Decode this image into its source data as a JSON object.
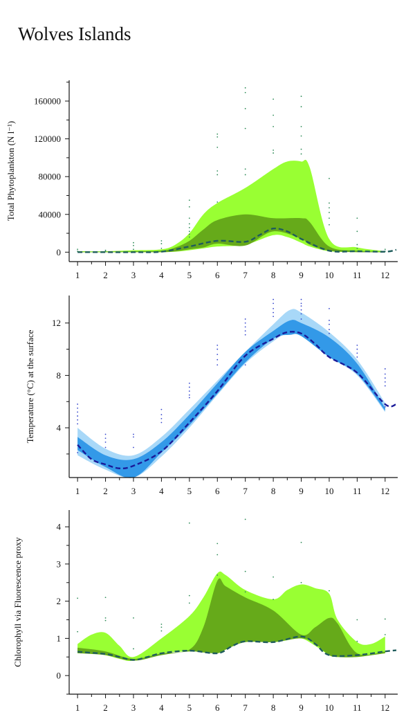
{
  "page": {
    "title": "Wolves Islands"
  },
  "chart_data": [
    {
      "type": "area",
      "ylabel": "Total Phytoplankton (N l⁻¹)",
      "xlim": [
        0.7,
        12.45
      ],
      "ylim": [
        -10000,
        182000
      ],
      "xticks": [
        1,
        2,
        3,
        4,
        5,
        6,
        7,
        8,
        9,
        10,
        11,
        12
      ],
      "yticks": [
        0,
        40000,
        80000,
        120000,
        160000
      ],
      "ytick_labels": [
        "0",
        "40000",
        "80000",
        "120000",
        "160000"
      ],
      "colors": {
        "outer": "#99ff33",
        "inner": "#66aa1a",
        "line": "#1f5c5c",
        "dots": "#2e8b57"
      },
      "bands": [
        {
          "role": "outer",
          "x": [
            1,
            2,
            3,
            4,
            4.5,
            5,
            5.5,
            6,
            7,
            8,
            8.5,
            9,
            9.3,
            10,
            11,
            12
          ],
          "upper": [
            1000,
            1000,
            2000,
            3000,
            8000,
            20000,
            40000,
            52000,
            68000,
            88000,
            96000,
            96000,
            90000,
            14000,
            5000,
            1000
          ],
          "lower": [
            0,
            0,
            0,
            0,
            500,
            2000,
            4000,
            6000,
            8000,
            18000,
            16000,
            10000,
            6000,
            1000,
            0,
            0
          ]
        },
        {
          "role": "inner",
          "x": [
            1,
            2,
            3,
            4,
            4.5,
            5,
            5.5,
            6,
            7,
            8,
            9,
            9.3,
            10,
            11,
            12
          ],
          "upper": [
            500,
            500,
            800,
            1500,
            5000,
            12000,
            24000,
            34000,
            40000,
            36000,
            36000,
            32000,
            6000,
            1500,
            500
          ],
          "lower": [
            0,
            0,
            0,
            0,
            800,
            3000,
            5000,
            9000,
            7000,
            22000,
            14000,
            8000,
            1500,
            0,
            0
          ]
        }
      ],
      "mean_line": {
        "x": [
          1,
          2,
          3,
          4,
          5,
          6,
          7,
          7.5,
          8,
          8.5,
          9,
          10,
          11,
          12,
          12.4
        ],
        "y": [
          0,
          0,
          0,
          500,
          6000,
          12000,
          11000,
          18000,
          25000,
          22000,
          14000,
          1500,
          1000,
          500,
          2500
        ]
      },
      "points": [
        [
          1,
          3000
        ],
        [
          1,
          1000
        ],
        [
          2,
          2000
        ],
        [
          2,
          1000
        ],
        [
          3,
          10000
        ],
        [
          3,
          7000
        ],
        [
          3,
          3000
        ],
        [
          4,
          12000
        ],
        [
          4,
          9000
        ],
        [
          4,
          4000
        ],
        [
          5,
          55000
        ],
        [
          5,
          48000
        ],
        [
          5,
          36000
        ],
        [
          5,
          30000
        ],
        [
          5,
          26000
        ],
        [
          5,
          22000
        ],
        [
          5,
          19000
        ],
        [
          5,
          16000
        ],
        [
          6,
          125000
        ],
        [
          6,
          122000
        ],
        [
          6,
          111000
        ],
        [
          6,
          86000
        ],
        [
          6,
          82000
        ],
        [
          6,
          53000
        ],
        [
          7,
          174000
        ],
        [
          7,
          169000
        ],
        [
          7,
          152000
        ],
        [
          7,
          131000
        ],
        [
          7,
          88000
        ],
        [
          7,
          82000
        ],
        [
          8,
          162000
        ],
        [
          8,
          145000
        ],
        [
          8,
          133000
        ],
        [
          8,
          108000
        ],
        [
          8,
          105000
        ],
        [
          9,
          165000
        ],
        [
          9,
          154000
        ],
        [
          9,
          133000
        ],
        [
          9,
          123000
        ],
        [
          9,
          109000
        ],
        [
          9,
          104000
        ],
        [
          10,
          78000
        ],
        [
          10,
          52000
        ],
        [
          10,
          47000
        ],
        [
          10,
          42000
        ],
        [
          10,
          36000
        ],
        [
          10,
          29000
        ],
        [
          11,
          36000
        ],
        [
          11,
          22000
        ],
        [
          11,
          8000
        ],
        [
          11,
          4000
        ],
        [
          12,
          3000
        ],
        [
          12,
          1000
        ]
      ]
    },
    {
      "type": "area",
      "ylabel": "Temperature (°C) at the surface",
      "xlim": [
        0.7,
        12.45
      ],
      "ylim": [
        0.2,
        14.1
      ],
      "xticks": [
        1,
        2,
        3,
        4,
        5,
        6,
        7,
        8,
        9,
        10,
        11,
        12
      ],
      "yticks": [
        4,
        8,
        12
      ],
      "ytick_labels": [
        "4",
        "8",
        "12"
      ],
      "minor_yticks": [
        2,
        6,
        10
      ],
      "colors": {
        "outer": "#a8d8f8",
        "inner": "#3399e8",
        "line": "#1a1a99",
        "dots": "#3344cc"
      },
      "bands": [
        {
          "role": "outer",
          "x": [
            1,
            2,
            3,
            4,
            5,
            6,
            7,
            8,
            8.6,
            9,
            10,
            11,
            12
          ],
          "upper": [
            4.0,
            2.4,
            1.9,
            3.3,
            5.4,
            7.6,
            9.8,
            11.9,
            13.0,
            12.8,
            11.3,
            9.2,
            5.9
          ],
          "lower": [
            1.9,
            0.8,
            0.2,
            1.8,
            4.0,
            6.5,
            8.9,
            10.6,
            11.3,
            11.0,
            9.4,
            8.0,
            5.2
          ]
        },
        {
          "role": "inner",
          "x": [
            1,
            2,
            3,
            4,
            5,
            6,
            7,
            8,
            8.6,
            9,
            10,
            11,
            12
          ],
          "upper": [
            3.3,
            1.9,
            1.6,
            2.9,
            5.0,
            7.4,
            9.8,
            11.4,
            12.2,
            12.0,
            10.9,
            8.9,
            5.5
          ],
          "lower": [
            2.3,
            1.0,
            0.2,
            2.1,
            4.2,
            6.6,
            9.0,
            10.8,
            11.1,
            11.0,
            9.4,
            8.1,
            5.3
          ]
        }
      ],
      "mean_line": {
        "x": [
          1,
          1.5,
          2,
          2.5,
          3,
          4,
          5,
          6,
          7,
          8,
          8.5,
          9,
          9.5,
          10,
          11,
          12,
          12.4
        ],
        "y": [
          2.7,
          1.6,
          1.2,
          0.9,
          1.1,
          2.2,
          4.4,
          6.8,
          9.5,
          10.8,
          11.3,
          11.2,
          10.4,
          9.4,
          8.2,
          5.8,
          5.8
        ]
      },
      "points": [
        [
          1,
          5.8
        ],
        [
          1,
          5.5
        ],
        [
          1,
          5.2
        ],
        [
          1,
          4.9
        ],
        [
          1,
          4.6
        ],
        [
          1,
          4.3
        ],
        [
          1,
          2.1
        ],
        [
          2,
          3.5
        ],
        [
          2,
          3.2
        ],
        [
          2,
          2.9
        ],
        [
          2,
          2.5
        ],
        [
          3,
          3.5
        ],
        [
          3,
          3.3
        ],
        [
          3,
          2.5
        ],
        [
          4,
          5.4
        ],
        [
          4,
          5.0
        ],
        [
          4,
          4.7
        ],
        [
          4,
          4.4
        ],
        [
          4,
          2.2
        ],
        [
          5,
          7.4
        ],
        [
          5,
          7.1
        ],
        [
          5,
          6.8
        ],
        [
          5,
          6.5
        ],
        [
          5,
          6.3
        ],
        [
          6,
          10.3
        ],
        [
          6,
          10.0
        ],
        [
          6,
          9.6
        ],
        [
          6,
          9.2
        ],
        [
          6,
          8.8
        ],
        [
          7,
          12.3
        ],
        [
          7,
          12.0
        ],
        [
          7,
          11.7
        ],
        [
          7,
          11.4
        ],
        [
          7,
          11.1
        ],
        [
          7,
          8.8
        ],
        [
          8,
          13.8
        ],
        [
          8,
          13.5
        ],
        [
          8,
          13.1
        ],
        [
          8,
          12.8
        ],
        [
          8,
          12.5
        ],
        [
          9,
          13.8
        ],
        [
          9,
          13.5
        ],
        [
          9,
          13.3
        ],
        [
          9,
          13.0
        ],
        [
          9,
          12.7
        ],
        [
          9,
          12.3
        ],
        [
          10,
          13.1
        ],
        [
          10,
          12.2
        ],
        [
          10,
          11.9
        ],
        [
          10,
          11.5
        ],
        [
          10,
          11.2
        ],
        [
          11,
          10.3
        ],
        [
          11,
          10.0
        ],
        [
          11,
          9.7
        ],
        [
          11,
          9.4
        ],
        [
          12,
          8.5
        ],
        [
          12,
          8.1
        ],
        [
          12,
          7.8
        ],
        [
          12,
          7.5
        ],
        [
          12,
          7.2
        ],
        [
          12,
          5.6
        ]
      ]
    },
    {
      "type": "area",
      "ylabel": "Chlorophyll via Fluorescence proxy",
      "xlim": [
        0.7,
        12.45
      ],
      "ylim": [
        -0.5,
        4.45
      ],
      "xticks": [
        1,
        2,
        3,
        4,
        5,
        6,
        7,
        8,
        9,
        10,
        11,
        12
      ],
      "yticks": [
        0,
        1,
        2,
        3,
        4
      ],
      "ytick_labels": [
        "0",
        "1",
        "2",
        "3",
        "4"
      ],
      "colors": {
        "outer": "#99ff33",
        "inner": "#66aa1a",
        "line": "#1f5c5c",
        "dots": "#2e8b57"
      },
      "bands": [
        {
          "role": "outer",
          "x": [
            1,
            1.5,
            2,
            2.5,
            3,
            4,
            5,
            5.5,
            6,
            6.3,
            7,
            8,
            8.5,
            9,
            9.5,
            10,
            10.3,
            11,
            11.5,
            12
          ],
          "upper": [
            0.85,
            1.1,
            1.15,
            0.8,
            0.5,
            1.0,
            1.6,
            2.1,
            2.75,
            2.7,
            2.3,
            2.05,
            2.3,
            2.45,
            2.35,
            2.2,
            1.5,
            0.9,
            0.85,
            1.05
          ],
          "lower": [
            0.6,
            0.6,
            0.55,
            0.45,
            0.4,
            0.6,
            0.65,
            0.65,
            0.6,
            0.7,
            0.9,
            0.9,
            0.95,
            1.0,
            0.8,
            0.55,
            0.5,
            0.5,
            0.55,
            0.6
          ]
        },
        {
          "role": "inner",
          "x": [
            1,
            2,
            3,
            4,
            5,
            5.5,
            6,
            6.3,
            7,
            8,
            9,
            9.5,
            10,
            10.3,
            11,
            12
          ],
          "upper": [
            0.75,
            0.65,
            0.45,
            0.6,
            0.7,
            1.3,
            2.55,
            2.4,
            2.1,
            1.75,
            1.1,
            1.3,
            1.55,
            1.4,
            0.6,
            0.65
          ],
          "lower": [
            0.6,
            0.55,
            0.4,
            0.55,
            0.65,
            0.62,
            0.6,
            0.7,
            0.9,
            0.9,
            1.0,
            0.85,
            0.55,
            0.5,
            0.5,
            0.6
          ]
        }
      ],
      "mean_line": {
        "x": [
          1,
          2,
          2.5,
          3,
          3.5,
          4,
          5,
          6,
          6.5,
          7,
          8,
          9,
          9.5,
          10,
          11,
          12,
          12.4
        ],
        "y": [
          0.64,
          0.58,
          0.5,
          0.42,
          0.5,
          0.6,
          0.67,
          0.6,
          0.78,
          0.92,
          0.9,
          1.05,
          0.85,
          0.55,
          0.55,
          0.65,
          0.68
        ]
      },
      "points": [
        [
          1,
          2.08
        ],
        [
          1,
          1.18
        ],
        [
          2,
          2.1
        ],
        [
          2,
          1.55
        ],
        [
          2,
          1.48
        ],
        [
          3,
          1.55
        ],
        [
          3,
          0.72
        ],
        [
          4,
          1.38
        ],
        [
          4,
          1.3
        ],
        [
          4,
          1.2
        ],
        [
          5,
          4.1
        ],
        [
          5,
          2.15
        ],
        [
          5,
          1.95
        ],
        [
          6,
          3.55
        ],
        [
          6,
          3.25
        ],
        [
          6,
          2.7
        ],
        [
          7,
          4.2
        ],
        [
          7,
          2.8
        ],
        [
          7,
          2.25
        ],
        [
          8,
          2.65
        ],
        [
          8,
          2.05
        ],
        [
          9,
          3.58
        ],
        [
          9,
          2.5
        ],
        [
          10,
          2.28
        ],
        [
          11,
          1.5
        ],
        [
          11,
          0.92
        ],
        [
          12,
          1.52
        ],
        [
          12,
          1.1
        ]
      ]
    }
  ]
}
